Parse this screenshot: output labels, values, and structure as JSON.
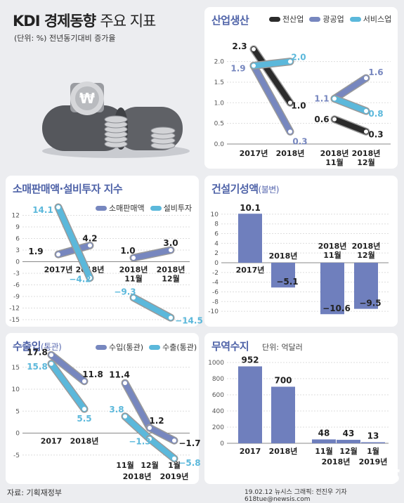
{
  "header": {
    "title_main": "KDI 경제동향",
    "title_sub": "주요 지표",
    "unit": "(단위: %) 전년동기대비 증가율"
  },
  "colors": {
    "black": "#2b2b2b",
    "purple": "#7787bf",
    "cyan": "#5bb8db",
    "bar": "#6f7fbd",
    "title": "#4f63a8"
  },
  "footer": {
    "source": "자료: 기획재정부",
    "credit": "19.02.12  뉴시스 그래픽: 전진우 기자 618tue@newsis.com",
    "watermark": "NEWSIS"
  },
  "chart_data": [
    {
      "id": "industry",
      "type": "line",
      "title": "산업생산",
      "legend": [
        "전산업",
        "광공업",
        "서비스업"
      ],
      "yticks": [
        0.0,
        0.5,
        1.0,
        1.5,
        2.0
      ],
      "ylim": [
        0,
        2.3
      ],
      "categories": [
        "2017년",
        "2018년",
        "2018년 11월",
        "2018년 12월"
      ],
      "series": [
        {
          "name": "전산업",
          "color": "#2b2b2b",
          "segments": [
            [
              2.3,
              1.0
            ],
            [
              0.6,
              0.3
            ]
          ]
        },
        {
          "name": "광공업",
          "color": "#7787bf",
          "segments": [
            [
              1.9,
              0.3
            ],
            [
              1.1,
              1.6
            ]
          ]
        },
        {
          "name": "서비스업",
          "color": "#5bb8db",
          "segments": [
            [
              1.9,
              2.0
            ],
            [
              1.1,
              0.8
            ]
          ]
        }
      ],
      "labels": {
        "전산업": [
          "2.3",
          "1.0",
          "0.6",
          "0.3"
        ],
        "광공업": [
          "1.9",
          "0.3",
          "1.1",
          "1.6"
        ],
        "서비스업": [
          "",
          "2.0",
          "",
          "0.8"
        ]
      }
    },
    {
      "id": "retail",
      "type": "line",
      "title": "소매판매액·설비투자 지수",
      "legend": [
        "소매판매액",
        "설비투자"
      ],
      "yticks": [
        12,
        9,
        6,
        3,
        0,
        -3,
        -6,
        -9,
        -12,
        -15
      ],
      "ylim": [
        -15,
        14.1
      ],
      "categories": [
        "2017년",
        "2018년",
        "2018년 11월",
        "2018년 12월"
      ],
      "series": [
        {
          "name": "소매판매액",
          "color": "#7787bf",
          "segments": [
            [
              1.9,
              4.2
            ],
            [
              1.0,
              3.0
            ]
          ]
        },
        {
          "name": "설비투자",
          "color": "#5bb8db",
          "segments": [
            [
              14.1,
              -4.2
            ],
            [
              -9.3,
              -14.5
            ]
          ]
        }
      ],
      "labels": {
        "소매판매액": [
          "1.9",
          "4.2",
          "1.0",
          "3.0"
        ],
        "설비투자": [
          "14.1",
          "-4.2",
          "-9.3",
          "-14.5"
        ]
      }
    },
    {
      "id": "construction",
      "type": "bar",
      "title": "건설기성액",
      "title_small": "(불변)",
      "yticks": [
        10,
        8,
        6,
        4,
        2,
        0,
        -2,
        -4,
        -6,
        -8,
        -10
      ],
      "ylim": [
        -11,
        11
      ],
      "categories": [
        "2017년",
        "2018년",
        "2018년 11월",
        "2018년 12월"
      ],
      "values": [
        10.1,
        -5.1,
        -10.6,
        -9.5
      ],
      "value_labels": [
        "10.1",
        "-5.1",
        "-10.6",
        "-9.5"
      ]
    },
    {
      "id": "trade",
      "type": "line",
      "title": "수출입",
      "title_small": "(통관)",
      "legend": [
        "수입(통관)",
        "수출(통관)"
      ],
      "yticks": [
        15,
        10,
        5,
        0,
        -5
      ],
      "ylim": [
        -6,
        18
      ],
      "categories": [
        "2017",
        "2018년",
        "11월",
        "12월",
        "1월"
      ],
      "group_labels": [
        "2018년",
        "2019년"
      ],
      "series": [
        {
          "name": "수입(통관)",
          "color": "#7787bf",
          "segments": [
            [
              17.8,
              11.8
            ],
            [
              11.4,
              1.2,
              -1.7
            ]
          ]
        },
        {
          "name": "수출(통관)",
          "color": "#5bb8db",
          "segments": [
            [
              15.8,
              5.5
            ],
            [
              3.8,
              -1.3,
              -5.8
            ]
          ]
        }
      ],
      "labels": {
        "수입(통관)": [
          "17.8",
          "11.8",
          "11.4",
          "1.2",
          "-1.7"
        ],
        "수출(통관)": [
          "15.8",
          "5.5",
          "3.8",
          "-1.3",
          "-5.8"
        ]
      }
    },
    {
      "id": "balance",
      "type": "bar",
      "title": "무역수지",
      "unit": "단위: 억달러",
      "yticks": [
        1000,
        800,
        600,
        400,
        200,
        0
      ],
      "ylim": [
        0,
        1000
      ],
      "categories": [
        "2017",
        "2018년",
        "11월",
        "12월",
        "1월"
      ],
      "group_labels": [
        "2018년",
        "2019년"
      ],
      "values": [
        952,
        700,
        48,
        43,
        13
      ],
      "value_labels": [
        "952",
        "700",
        "48",
        "43",
        "13"
      ]
    }
  ]
}
